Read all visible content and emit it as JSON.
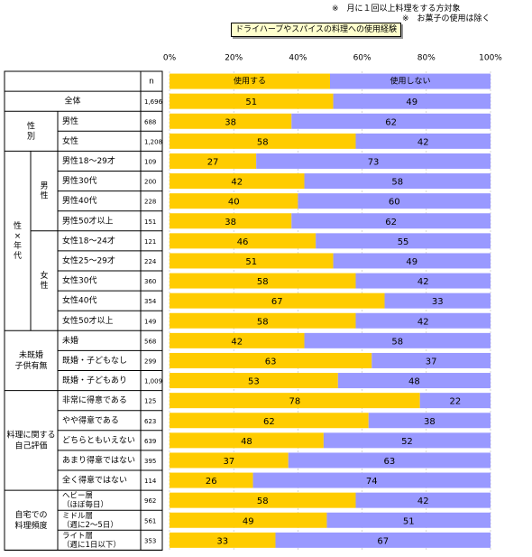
{
  "notes": [
    "※　月に１回以上料理をする方対象",
    "※　お菓子の使用は除く"
  ],
  "title": "ドライハーブやスパイスの料理への使用経験",
  "table_header": {
    "n": "n"
  },
  "groups": [
    {
      "label": "",
      "sub": ""
    },
    {
      "label": "性別",
      "sub": ""
    },
    {
      "label": "性×年代",
      "sub": "男性"
    },
    {
      "label": "",
      "sub": "女性"
    },
    {
      "label": "未既婚子供有無",
      "sub": ""
    },
    {
      "label": "料理に関する自己評価",
      "sub": ""
    },
    {
      "label": "自宅での料理頻度",
      "sub": ""
    }
  ],
  "colors": {
    "use": "#ffcc00",
    "nouse": "#9999ff",
    "grid": "#bbbbbb"
  },
  "chart_data": {
    "type": "bar",
    "stacked": true,
    "orientation": "horizontal",
    "xlim": [
      0,
      100
    ],
    "x_ticks": [
      "0%",
      "20%",
      "40%",
      "60%",
      "80%",
      "100%"
    ],
    "legend": [
      "使用する",
      "使用しない"
    ],
    "categories": [
      "全体",
      "男性",
      "女性",
      "男性18〜29才",
      "男性30代",
      "男性40代",
      "男性50才以上",
      "女性18〜24才",
      "女性25〜29才",
      "女性30代",
      "女性40代",
      "女性50才以上",
      "未婚",
      "既婚・子どもなし",
      "既婚・子どもあり",
      "非常に得意である",
      "やや得意である",
      "どちらともいえない",
      "あまり得意ではない",
      "全く得意ではない",
      "ヘビー層\n（ほぼ毎日）",
      "ミドル層\n（週に2〜5日）",
      "ライト層\n（週に1日以下）"
    ],
    "n": [
      "1,696",
      "688",
      "1,208",
      "109",
      "200",
      "228",
      "151",
      "121",
      "224",
      "360",
      "354",
      "149",
      "568",
      "299",
      "1,009",
      "125",
      "623",
      "639",
      "395",
      "114",
      "962",
      "561",
      "353"
    ],
    "series": [
      {
        "name": "使用する",
        "values": [
          51,
          38,
          58,
          27,
          42,
          40,
          38,
          46,
          51,
          58,
          67,
          58,
          42,
          63,
          53,
          78,
          62,
          48,
          37,
          26,
          58,
          49,
          33
        ]
      },
      {
        "name": "使用しない",
        "values": [
          49,
          62,
          42,
          73,
          58,
          60,
          62,
          55,
          49,
          42,
          33,
          42,
          58,
          37,
          48,
          22,
          38,
          52,
          63,
          74,
          42,
          51,
          67
        ]
      }
    ]
  }
}
